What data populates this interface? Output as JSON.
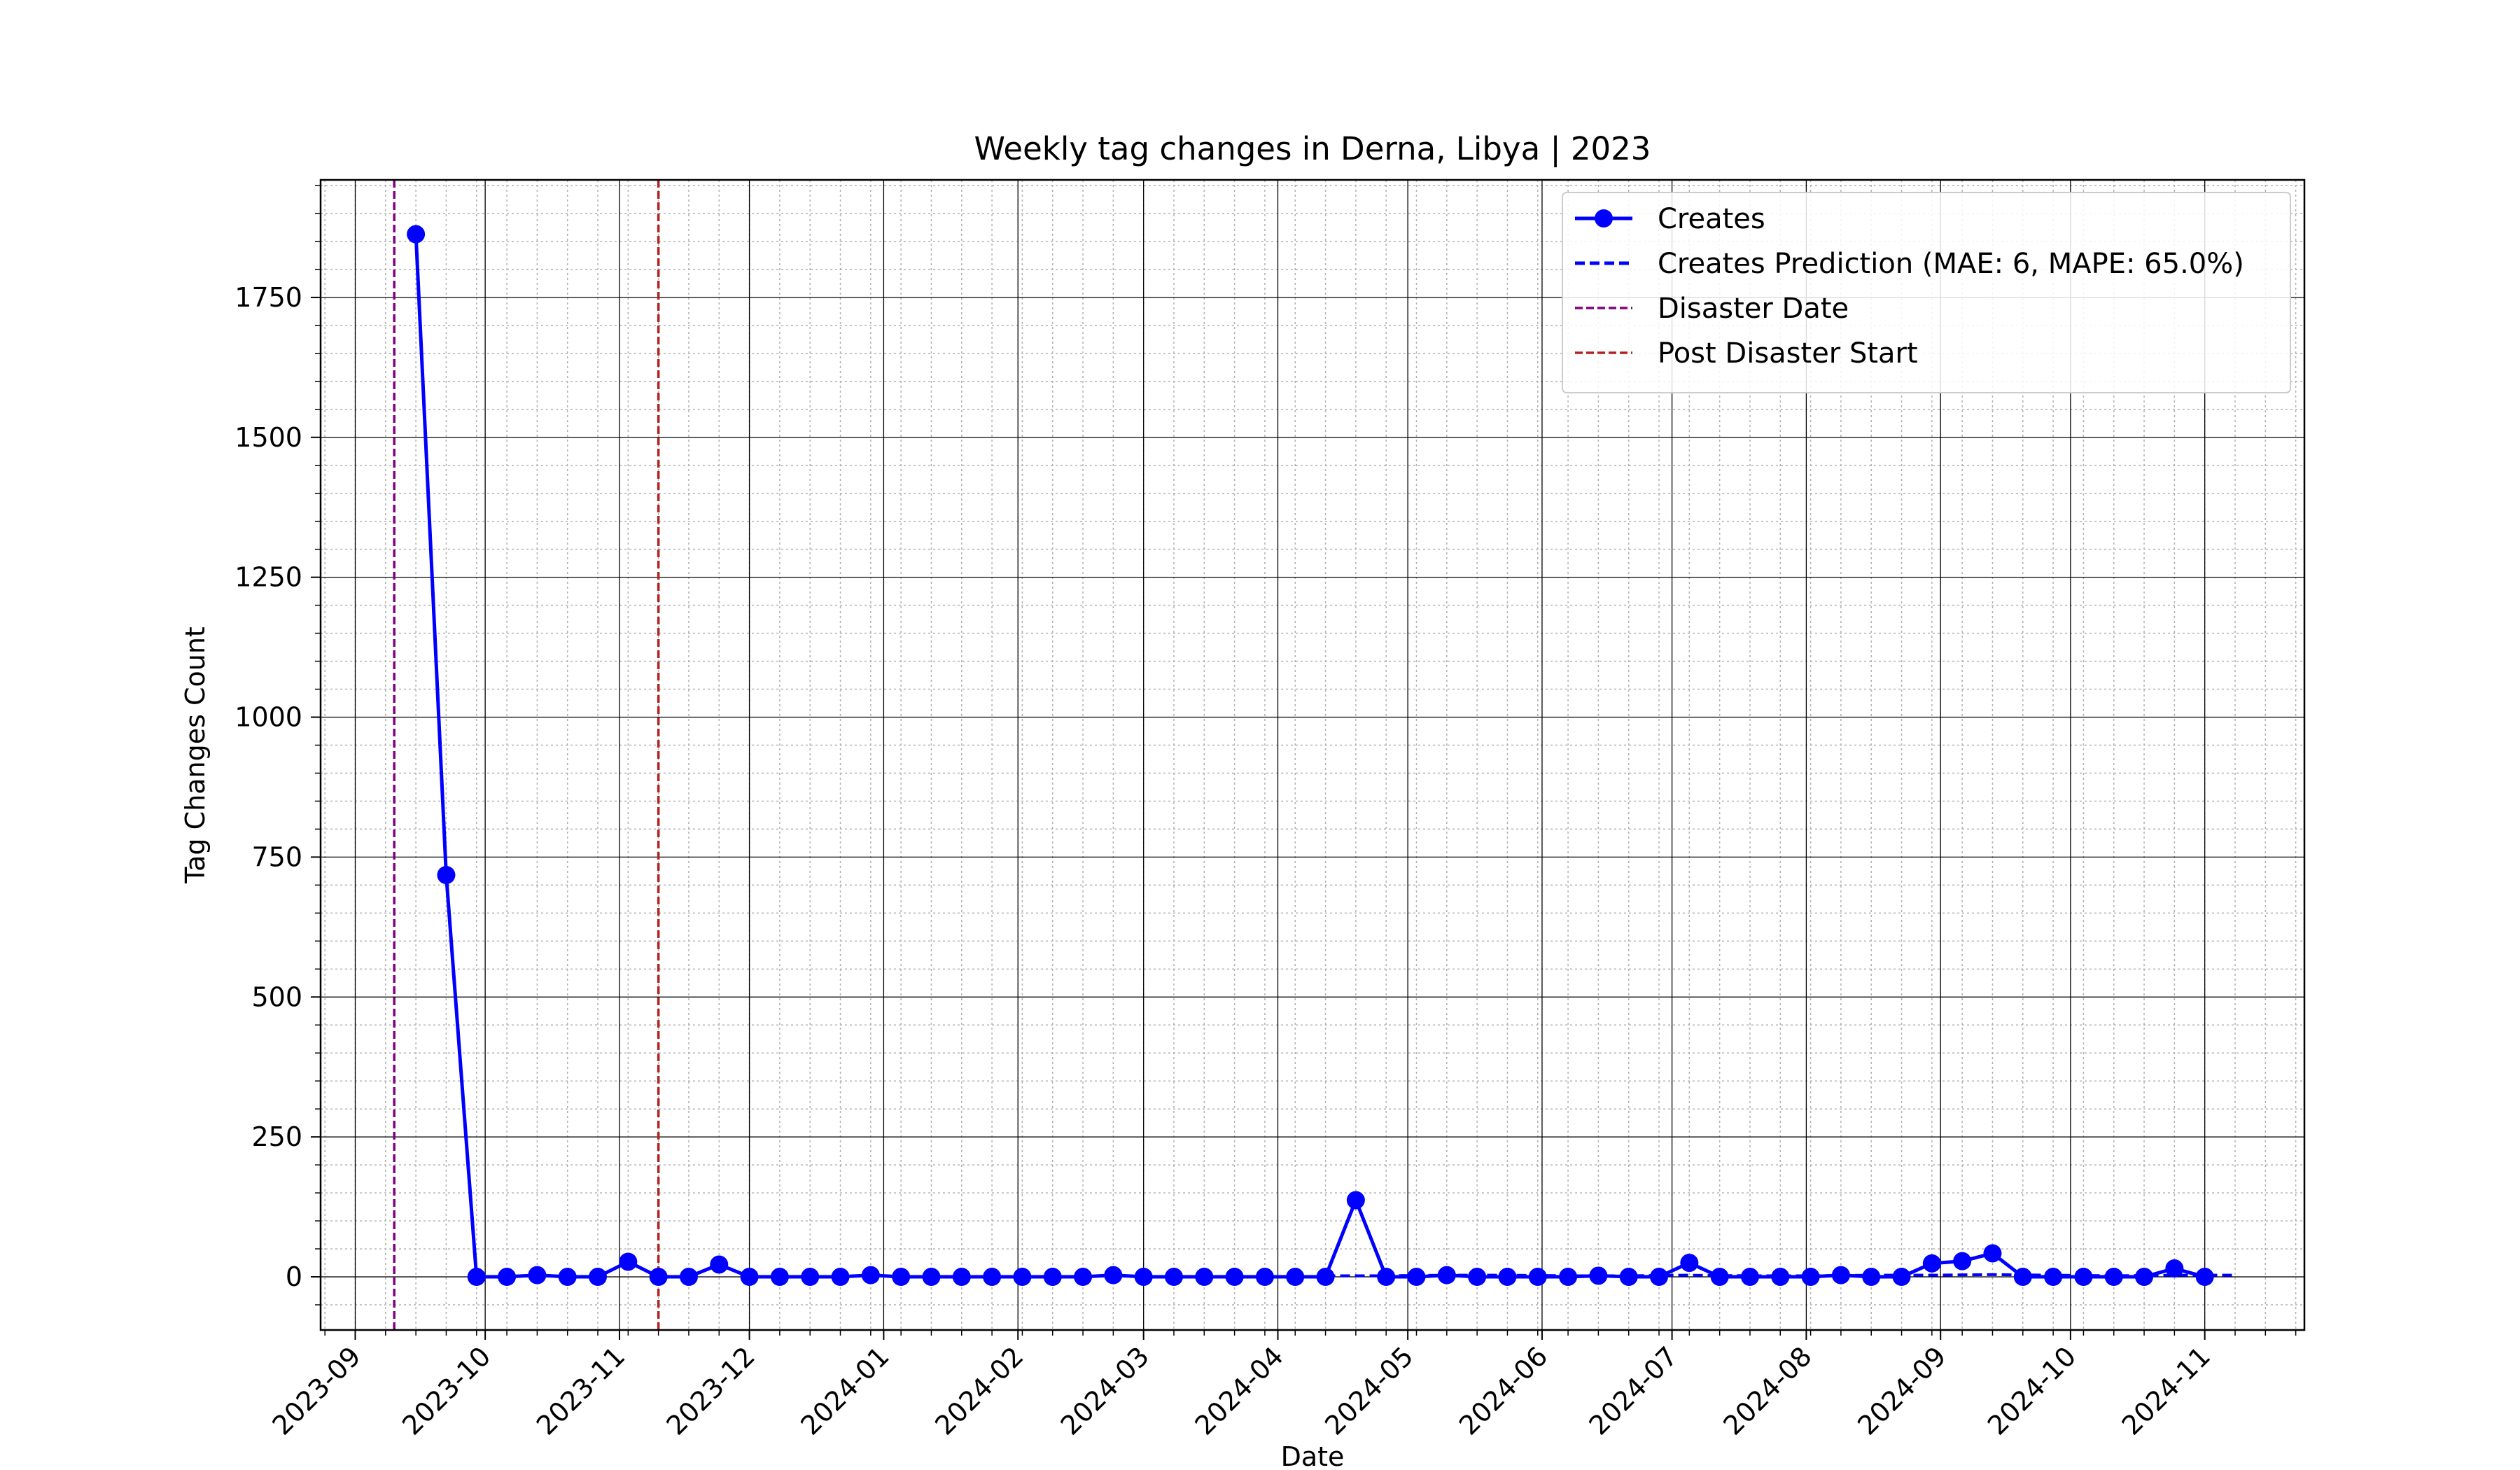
{
  "chart_data": {
    "type": "line",
    "title": "Weekly tag changes in Derna, Libya | 2023",
    "xlabel": "Date",
    "ylabel": "Tag Changes Count",
    "x_axis": "date",
    "xlim": [
      "2023-08-24",
      "2024-11-24"
    ],
    "ylim": [
      -95,
      1960
    ],
    "y_ticks": [
      0,
      250,
      500,
      750,
      1000,
      1250,
      1500,
      1750
    ],
    "x_ticks": [
      "2023-09",
      "2023-10",
      "2023-11",
      "2023-12",
      "2024-01",
      "2024-02",
      "2024-03",
      "2024-04",
      "2024-05",
      "2024-06",
      "2024-07",
      "2024-08",
      "2024-09",
      "2024-10",
      "2024-11"
    ],
    "grid": "major and minor",
    "legend_position": "top-right",
    "series": [
      {
        "name": "Creates",
        "color": "#0000ff",
        "style": "solid-with-markers",
        "x": [
          "2023-09-15",
          "2023-09-22",
          "2023-09-29",
          "2023-10-06",
          "2023-10-13",
          "2023-10-20",
          "2023-10-27",
          "2023-11-03",
          "2023-11-10",
          "2023-11-17",
          "2023-11-24",
          "2023-12-01",
          "2023-12-08",
          "2023-12-15",
          "2023-12-22",
          "2023-12-29",
          "2024-01-05",
          "2024-01-12",
          "2024-01-19",
          "2024-01-26",
          "2024-02-02",
          "2024-02-09",
          "2024-02-16",
          "2024-02-23",
          "2024-03-01",
          "2024-03-08",
          "2024-03-15",
          "2024-03-22",
          "2024-03-29",
          "2024-04-05",
          "2024-04-12",
          "2024-04-19",
          "2024-04-26",
          "2024-05-03",
          "2024-05-10",
          "2024-05-17",
          "2024-05-24",
          "2024-05-31",
          "2024-06-07",
          "2024-06-14",
          "2024-06-21",
          "2024-06-28",
          "2024-07-05",
          "2024-07-12",
          "2024-07-19",
          "2024-07-26",
          "2024-08-02",
          "2024-08-09",
          "2024-08-16",
          "2024-08-23",
          "2024-08-30",
          "2024-09-06",
          "2024-09-13",
          "2024-09-20",
          "2024-09-27",
          "2024-10-04",
          "2024-10-11",
          "2024-10-18",
          "2024-10-25",
          "2024-11-01"
        ],
        "values": [
          1863,
          718,
          0,
          0,
          3,
          0,
          0,
          27,
          0,
          0,
          22,
          0,
          0,
          0,
          0,
          3,
          0,
          0,
          0,
          0,
          0,
          0,
          0,
          3,
          0,
          0,
          0,
          0,
          0,
          0,
          0,
          137,
          0,
          0,
          3,
          0,
          0,
          0,
          0,
          2,
          0,
          0,
          25,
          0,
          0,
          0,
          0,
          3,
          0,
          0,
          24,
          28,
          42,
          0,
          0,
          0,
          0,
          0,
          15,
          0
        ]
      },
      {
        "name": "Creates Prediction (MAE: 6, MAPE: 65.0%)",
        "color": "#0000ff",
        "style": "dashed",
        "x": [
          "2024-04-12",
          "2024-04-26",
          "2024-05-10",
          "2024-05-24",
          "2024-06-07",
          "2024-06-21",
          "2024-07-05",
          "2024-07-19",
          "2024-08-02",
          "2024-08-16",
          "2024-08-30",
          "2024-09-13",
          "2024-09-27",
          "2024-10-11",
          "2024-10-25",
          "2024-11-08"
        ],
        "values": [
          2,
          2,
          3,
          3,
          2,
          2,
          3,
          2,
          2,
          3,
          3,
          4,
          3,
          2,
          3,
          3
        ]
      }
    ],
    "vlines": [
      {
        "name": "Disaster Date",
        "x": "2023-09-10",
        "color": "#800080",
        "style": "dashed"
      },
      {
        "name": "Post Disaster Start",
        "x": "2023-11-10",
        "color": "#b22222",
        "style": "dashed"
      }
    ],
    "legend": [
      {
        "label": "Creates",
        "kind": "line-marker",
        "color": "#0000ff"
      },
      {
        "label": "Creates Prediction (MAE: 6, MAPE: 65.0%)",
        "kind": "dashed",
        "color": "#0000ff"
      },
      {
        "label": "Disaster Date",
        "kind": "dashed-thin",
        "color": "#800080"
      },
      {
        "label": "Post Disaster Start",
        "kind": "dashed-thin",
        "color": "#b22222"
      }
    ]
  }
}
